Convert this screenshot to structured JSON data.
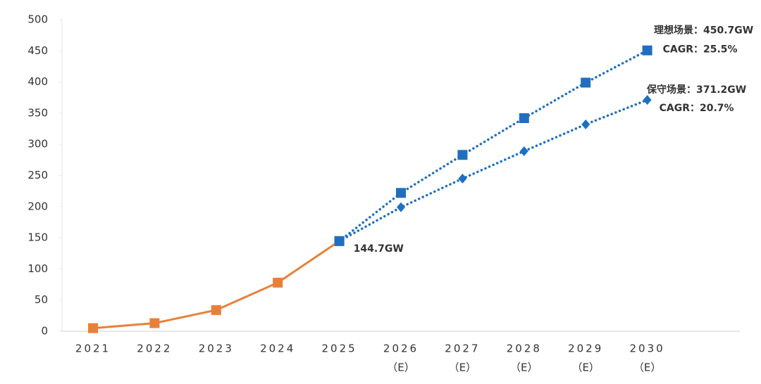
{
  "chart_data": {
    "type": "line",
    "categories": [
      "2021",
      "2022",
      "2023",
      "2024",
      "2025",
      "2026",
      "2027",
      "2028",
      "2029",
      "2030"
    ],
    "category_notes": [
      null,
      null,
      null,
      null,
      null,
      "（E）",
      "（E）",
      "（E）",
      "（E）",
      "（E）"
    ],
    "ylim": [
      0,
      500
    ],
    "yticks": [
      0,
      50,
      100,
      150,
      200,
      250,
      300,
      350,
      400,
      450,
      500
    ],
    "series": [
      {
        "color": "#e8803a",
        "marker": "square",
        "line_style": "solid",
        "values": [
          5,
          13,
          34,
          78,
          144.7,
          null,
          null,
          null,
          null,
          null
        ],
        "value_labels": [
          null,
          null,
          null,
          null,
          "144.7GW",
          null,
          null,
          null,
          null,
          null
        ]
      },
      {
        "color": "#1f6fc0",
        "marker": "square",
        "line_style": "dotted",
        "values": [
          null,
          null,
          null,
          null,
          144.7,
          222,
          283,
          342,
          399,
          450.7
        ],
        "annotation": [
          "理想场景：450.7GW",
          "CAGR：25.5%"
        ]
      },
      {
        "color": "#1f6fc0",
        "marker": "diamond",
        "line_style": "dotted",
        "values": [
          null,
          null,
          null,
          null,
          144.7,
          199,
          245,
          289,
          332,
          371.2
        ],
        "annotation": [
          "保守场景：371.2GW",
          "CAGR：20.7%"
        ]
      }
    ]
  }
}
